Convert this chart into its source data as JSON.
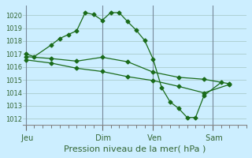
{
  "xlabel": "Pression niveau de la mer( hPa )",
  "background_color": "#cceeff",
  "grid_color": "#aacccc",
  "line_color": "#1a6b1a",
  "ylim": [
    1011.5,
    1020.75
  ],
  "yticks": [
    1012,
    1013,
    1014,
    1015,
    1016,
    1017,
    1018,
    1019,
    1020
  ],
  "xtick_labels": [
    " Jeu",
    " Dim",
    " Ven",
    " Sam"
  ],
  "xtick_positions": [
    0,
    9,
    15,
    22
  ],
  "xlim": [
    -0.3,
    26
  ],
  "vline_positions": [
    0,
    9,
    15,
    22
  ],
  "series1_x": [
    0,
    1,
    3,
    4,
    5,
    6,
    7,
    8,
    9,
    10,
    11,
    12,
    13,
    14,
    15,
    16,
    17,
    18,
    19,
    20,
    21,
    23
  ],
  "series1_y": [
    1017.0,
    1016.8,
    1017.7,
    1018.2,
    1018.5,
    1018.8,
    1020.2,
    1020.05,
    1019.6,
    1020.2,
    1020.2,
    1019.5,
    1018.85,
    1018.05,
    1016.6,
    1014.4,
    1013.3,
    1012.8,
    1012.1,
    1012.1,
    1013.8,
    1014.8
  ],
  "series2_x": [
    0,
    3,
    6,
    9,
    12,
    15,
    18,
    21,
    24
  ],
  "series2_y": [
    1016.8,
    1016.65,
    1016.45,
    1016.75,
    1016.4,
    1015.6,
    1015.2,
    1015.05,
    1014.7
  ],
  "series3_x": [
    0,
    3,
    6,
    9,
    12,
    15,
    18,
    21,
    24
  ],
  "series3_y": [
    1016.55,
    1016.3,
    1015.9,
    1015.65,
    1015.25,
    1014.95,
    1014.5,
    1014.0,
    1014.65
  ]
}
